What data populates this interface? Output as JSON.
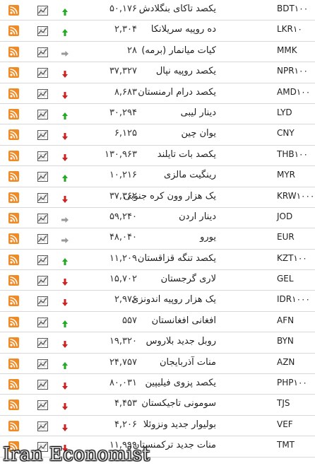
{
  "colors": {
    "rss": "#f08a24",
    "up": "#22aa22",
    "down": "#cc2222",
    "same": "#999999",
    "chart": "#555555"
  },
  "rows": [
    {
      "code": "BDT۱۰۰",
      "name": "یکصد تاکای بنگلادش",
      "value": "۵۰,۱۷۶",
      "trend": "up"
    },
    {
      "code": "LKR۱۰",
      "name": "ده روپیه سریلانکا",
      "value": "۲,۳۰۴",
      "trend": "up"
    },
    {
      "code": "MMK",
      "name": "کیات میانمار (برمه)",
      "value": "۲۸",
      "trend": "same"
    },
    {
      "code": "NPR۱۰۰",
      "name": "یکصد روپیه نپال",
      "value": "۳۷,۳۲۷",
      "trend": "down"
    },
    {
      "code": "AMD۱۰۰",
      "name": "یکصد درام ارمنستان",
      "value": "۸,۶۸۳",
      "trend": "down"
    },
    {
      "code": "LYD",
      "name": "دینار لیبی",
      "value": "۳۰,۲۹۴",
      "trend": "up"
    },
    {
      "code": "CNY",
      "name": "یوان چین",
      "value": "۶,۱۲۵",
      "trend": "down"
    },
    {
      "code": "THB۱۰۰",
      "name": "یکصد بات تایلند",
      "value": "۱۳۰,۹۶۳",
      "trend": "down"
    },
    {
      "code": "MYR",
      "name": "رینگیت مالزی",
      "value": "۱۰,۲۱۶",
      "trend": "up"
    },
    {
      "code": "KRW۱۰۰۰",
      "name": "یک هزار وون کره جنوبی",
      "value": "۳۷,۳۶۲",
      "trend": "down"
    },
    {
      "code": "JOD",
      "name": "دینار اردن",
      "value": "۵۹,۲۴۰",
      "trend": "same"
    },
    {
      "code": "EUR",
      "name": "یورو",
      "value": "۴۸,۰۴۰",
      "trend": "same"
    },
    {
      "code": "KZT۱۰۰",
      "name": "یکصد تنگه قزاقستان",
      "value": "۱۱,۲۰۹",
      "trend": "up"
    },
    {
      "code": "GEL",
      "name": "لاری گرجستان",
      "value": "۱۵,۷۰۲",
      "trend": "down"
    },
    {
      "code": "IDR۱۰۰۰",
      "name": "یک هزار روپیه اندونزی",
      "value": "۲,۹۷۶",
      "trend": "down"
    },
    {
      "code": "AFN",
      "name": "افغانی افغانستان",
      "value": "۵۵۷",
      "trend": "up"
    },
    {
      "code": "BYN",
      "name": "روبل جدید بلاروس",
      "value": "۱۹,۳۲۰",
      "trend": "down"
    },
    {
      "code": "AZN",
      "name": "منات آذربایجان",
      "value": "۲۴,۷۵۷",
      "trend": "up"
    },
    {
      "code": "PHP۱۰۰",
      "name": "یکصد پزوی فیلیپین",
      "value": "۸۰,۰۳۱",
      "trend": "down"
    },
    {
      "code": "TJS",
      "name": "سومونی تاجیکستان",
      "value": "۴,۴۵۳",
      "trend": "down"
    },
    {
      "code": "VEF",
      "name": "بولیوار جدید ونزوئلا",
      "value": "۴,۲۰۶",
      "trend": "down"
    },
    {
      "code": "TMT",
      "name": "منات جدید ترکمنستان",
      "value": "۱۱,۹۹۹",
      "trend": "down"
    }
  ],
  "watermark": "Iran Economist"
}
